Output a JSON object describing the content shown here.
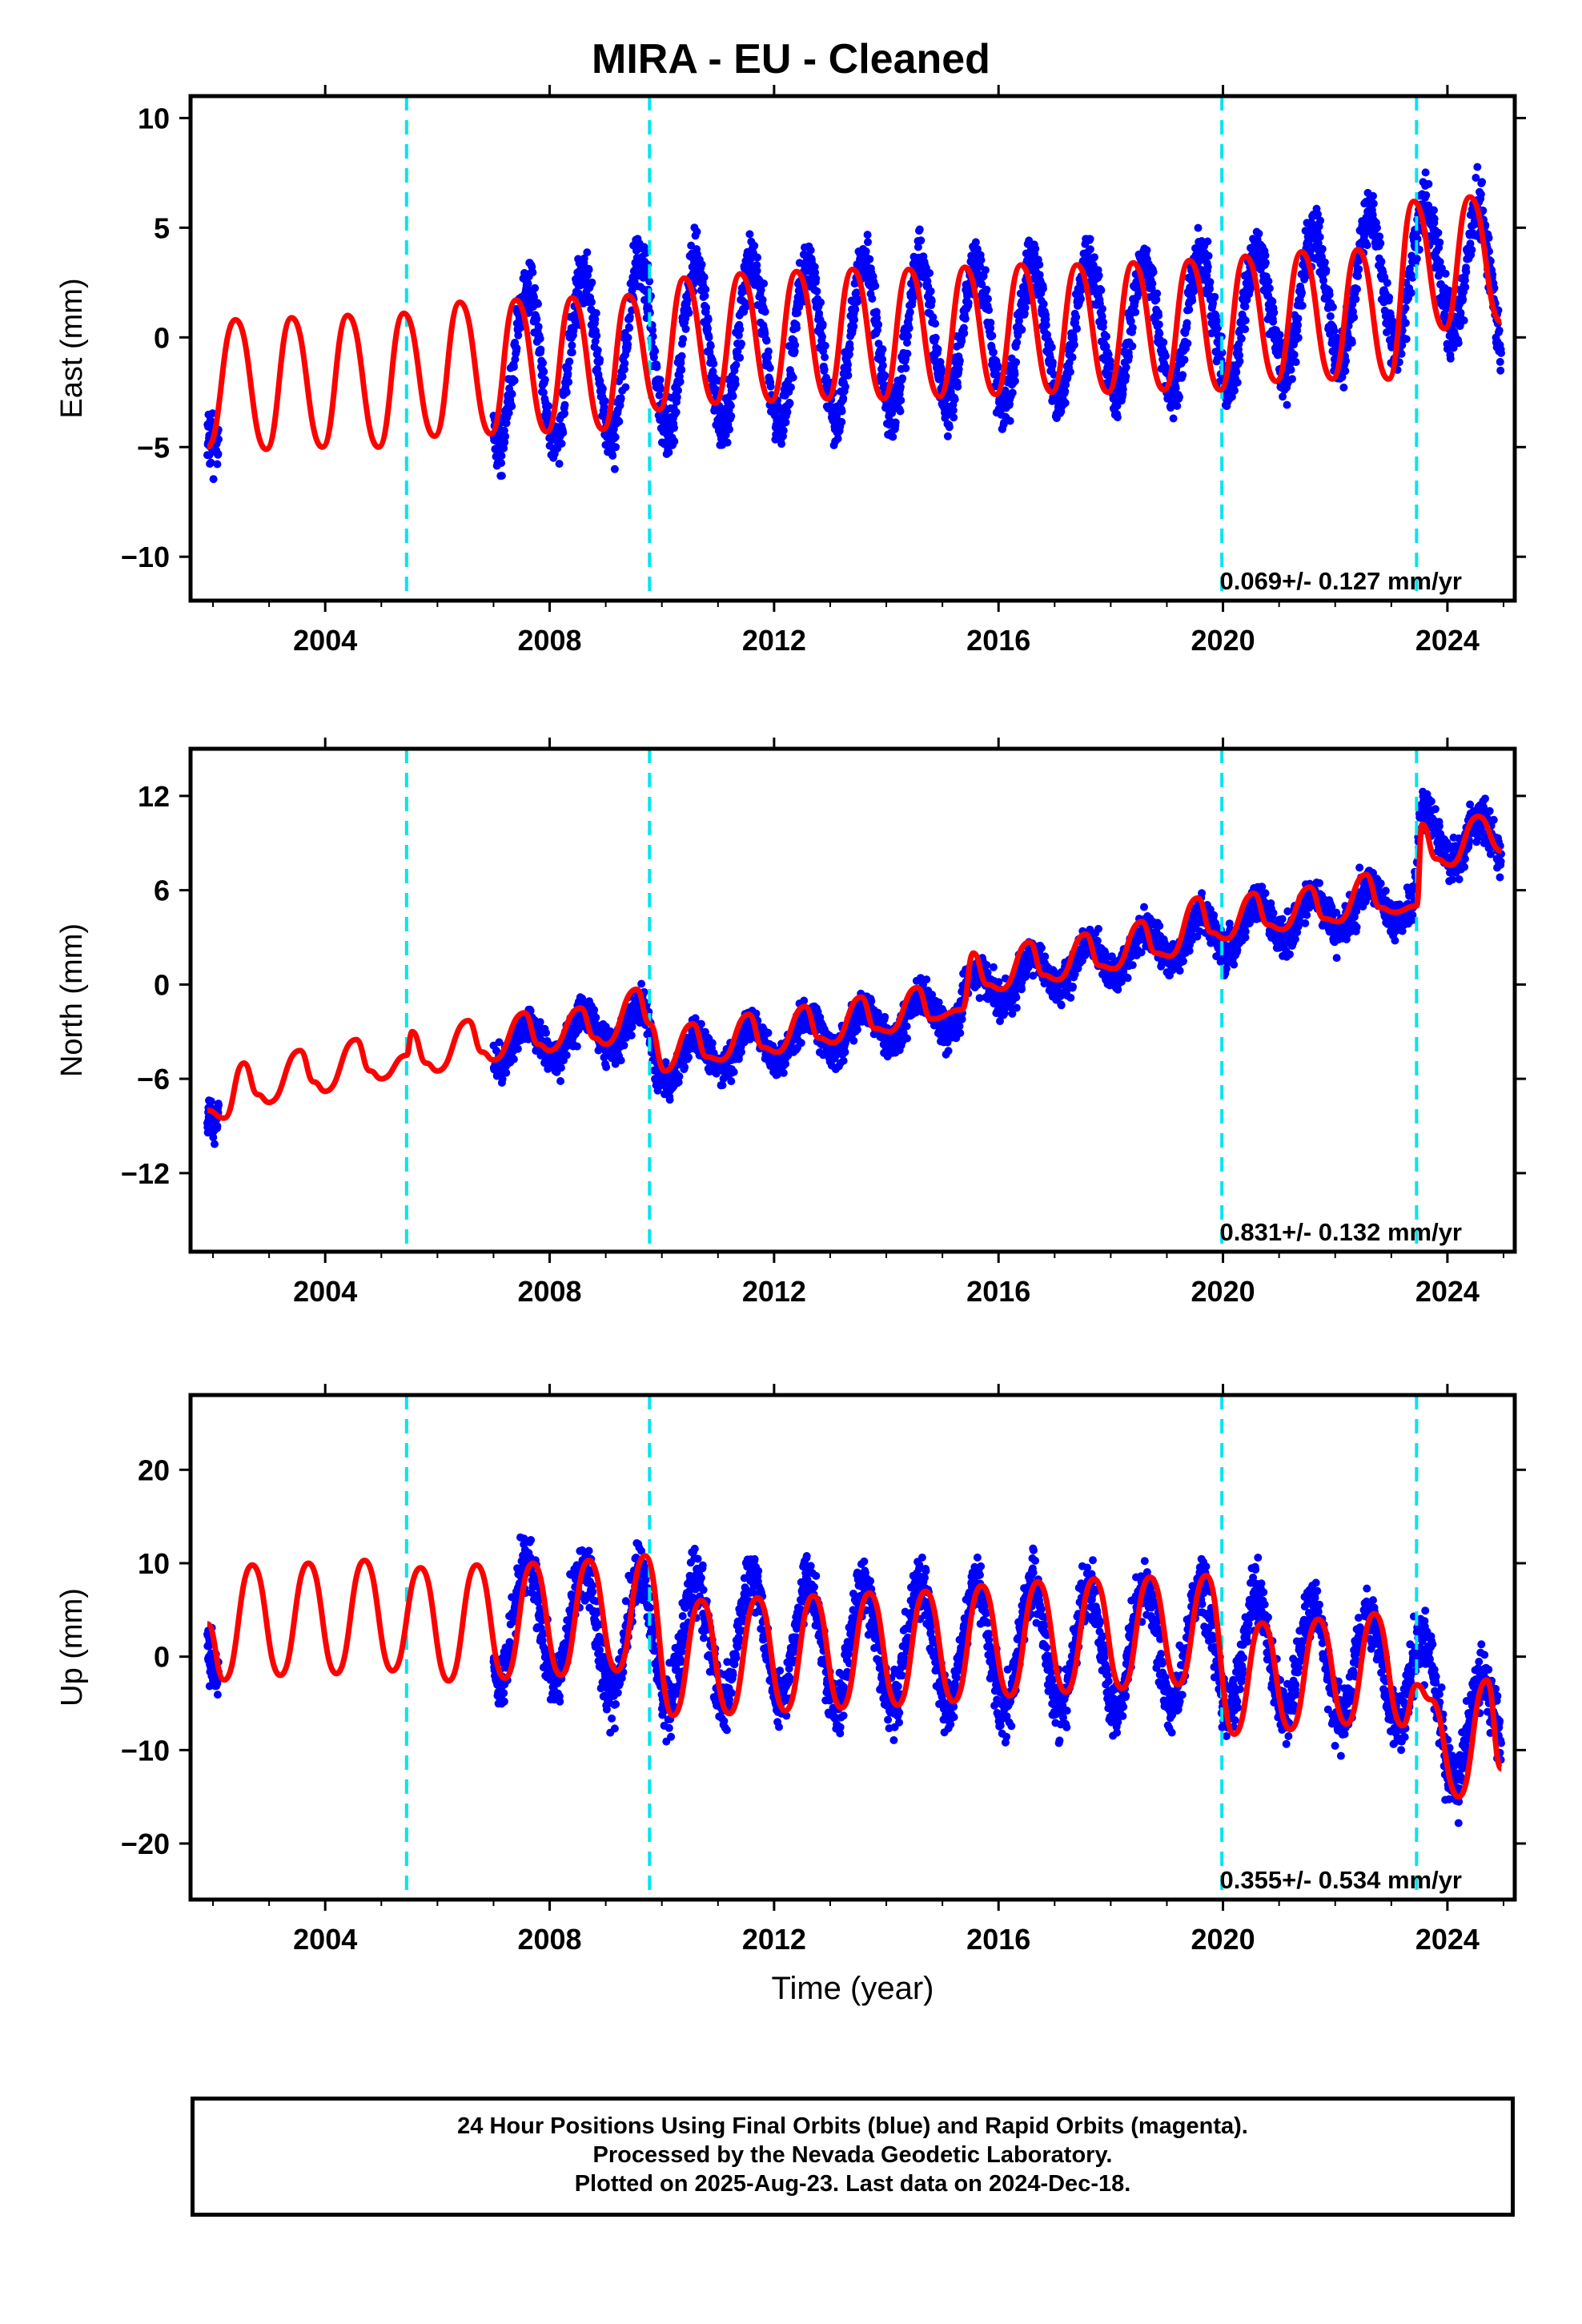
{
  "title": "MIRA  - EU - Cleaned",
  "colors": {
    "data_points": "#0000ff",
    "model_fit": "#ff0000",
    "event_lines": "#00e5ee",
    "axes": "#000000"
  },
  "x_axis": {
    "label": "Time (year)",
    "range": [
      2001.6,
      2025.2
    ],
    "ticks": [
      "2004",
      "2008",
      "2012",
      "2016",
      "2020",
      "2024"
    ]
  },
  "event_lines_years": [
    2005.45,
    2009.78,
    2019.98,
    2023.45
  ],
  "footer": {
    "line1": "24 Hour Positions Using Final Orbits (blue) and Rapid Orbits (magenta).",
    "line2": "Processed by the Nevada Geodetic Laboratory.",
    "line3": "Plotted on 2025-Aug-23. Last data on 2024-Dec-18."
  },
  "chart_data": [
    {
      "type": "scatter",
      "id": "east",
      "ylabel": "East (mm)",
      "ylim": [
        -12,
        11
      ],
      "yticks": [
        -10,
        -5,
        0,
        5,
        10
      ],
      "rate_text": "0.069+/- 0.127 mm/yr",
      "data_start": 2007.0,
      "data_end": 2024.96,
      "series": [
        {
          "kind": "points",
          "early_segment": [
            2001.9,
            2002.1
          ],
          "envelope": {
            "x": [
              2001.9,
              2002.1,
              2007.0,
              2009.8,
              2016.0,
              2019.9,
              2023.5,
              2024.5,
              2024.96
            ],
            "center": [
              -4.0,
              -3.0,
              -1.5,
              -0.5,
              0.2,
              0.6,
              3.0,
              3.5,
              0.5
            ],
            "amplitude": [
              1.5,
              1.5,
              3.5,
              4.0,
              3.2,
              3.0,
              3.0,
              3.0,
              2.0
            ],
            "noise": [
              1.6,
              1.6,
              1.6,
              1.6,
              1.5,
              1.5,
              1.7,
              1.7,
              1.5
            ]
          }
        },
        {
          "kind": "model",
          "x": [
            2001.9,
            2002.4,
            2002.95,
            2003.4,
            2003.95,
            2004.4,
            2004.95,
            2005.4,
            2005.95,
            2006.4,
            2006.95,
            2007.4,
            2007.95,
            2008.4,
            2008.95,
            2009.4,
            2009.95,
            2010.4,
            2010.95,
            2011.4,
            2011.95,
            2012.4,
            2012.95,
            2013.4,
            2013.95,
            2014.4,
            2014.95,
            2015.4,
            2015.95,
            2016.4,
            2016.95,
            2017.4,
            2017.95,
            2018.4,
            2018.95,
            2019.4,
            2019.95,
            2020.4,
            2020.95,
            2021.4,
            2021.95,
            2022.4,
            2022.95,
            2023.4,
            2023.95,
            2024.4,
            2024.96
          ],
          "y": [
            -5.0,
            0.8,
            -5.1,
            0.9,
            -5.0,
            1.0,
            -5.0,
            1.1,
            -4.5,
            1.6,
            -4.4,
            1.7,
            -4.3,
            1.8,
            -4.2,
            1.9,
            -3.3,
            2.7,
            -3.0,
            2.9,
            -2.9,
            3.0,
            -2.8,
            3.1,
            -2.8,
            3.1,
            -2.7,
            3.2,
            -2.6,
            3.3,
            -2.5,
            3.3,
            -2.5,
            3.4,
            -2.4,
            3.5,
            -2.4,
            3.7,
            -2.0,
            3.9,
            -1.9,
            4.0,
            -1.9,
            6.2,
            0.4,
            6.4,
            0.7
          ]
        }
      ]
    },
    {
      "type": "scatter",
      "id": "north",
      "ylabel": "North (mm)",
      "ylim": [
        -17,
        15
      ],
      "yticks": [
        -12,
        -6,
        0,
        6,
        12
      ],
      "rate_text": "0.831+/- 0.132 mm/yr",
      "data_start": 2007.0,
      "data_end": 2024.96,
      "series": [
        {
          "kind": "points",
          "early_segment": [
            2001.9,
            2002.1
          ],
          "envelope": {
            "x": [
              2001.9,
              2002.1,
              2007.0,
              2009.7,
              2009.9,
              2015.3,
              2015.4,
              2019.98,
              2023.45,
              2023.5,
              2024.96
            ],
            "center": [
              -8.0,
              -8.0,
              -4.0,
              -2.5,
              -5.0,
              -1.5,
              -0.5,
              3.5,
              5.5,
              9.5,
              9.0
            ],
            "amplitude": [
              0.8,
              0.8,
              1.3,
              1.3,
              1.3,
              1.2,
              1.2,
              1.3,
              1.3,
              1.5,
              1.5
            ],
            "noise": [
              1.5,
              1.5,
              1.5,
              1.5,
              1.5,
              1.4,
              1.4,
              1.5,
              1.6,
              1.7,
              1.7
            ]
          }
        },
        {
          "kind": "model",
          "x": [
            2001.9,
            2002.2,
            2002.55,
            2002.8,
            2003.0,
            2003.55,
            2003.8,
            2004.0,
            2004.55,
            2004.8,
            2005.0,
            2005.45,
            2005.55,
            2005.8,
            2006.0,
            2006.55,
            2006.8,
            2007.0,
            2007.55,
            2007.8,
            2008.0,
            2008.55,
            2008.8,
            2009.0,
            2009.55,
            2009.78,
            2010.05,
            2010.55,
            2010.8,
            2011.05,
            2011.55,
            2011.8,
            2012.05,
            2012.55,
            2012.8,
            2013.05,
            2013.55,
            2013.8,
            2014.05,
            2014.55,
            2014.8,
            2015.35,
            2015.55,
            2015.8,
            2016.05,
            2016.55,
            2016.8,
            2017.05,
            2017.55,
            2017.8,
            2018.05,
            2018.55,
            2018.8,
            2019.05,
            2019.55,
            2019.8,
            2020.05,
            2020.55,
            2020.8,
            2021.05,
            2021.55,
            2021.8,
            2022.05,
            2022.55,
            2022.8,
            2023.05,
            2023.45,
            2023.55,
            2023.8,
            2024.05,
            2024.55,
            2024.96
          ],
          "y": [
            -8.0,
            -8.5,
            -5.0,
            -7.0,
            -7.5,
            -4.2,
            -6.2,
            -6.8,
            -3.5,
            -5.5,
            -6.0,
            -4.5,
            -3.0,
            -5.0,
            -5.5,
            -2.3,
            -4.3,
            -4.8,
            -1.8,
            -3.8,
            -4.2,
            -1.5,
            -3.4,
            -3.8,
            -0.3,
            -2.5,
            -5.5,
            -2.5,
            -4.6,
            -4.8,
            -1.9,
            -4.0,
            -4.3,
            -1.4,
            -3.4,
            -3.7,
            -0.8,
            -2.8,
            -3.0,
            -0.2,
            -2.2,
            -1.6,
            2.0,
            0.0,
            -0.3,
            2.7,
            0.6,
            0.3,
            3.2,
            1.2,
            1.0,
            4.0,
            2.0,
            1.8,
            5.5,
            3.3,
            2.9,
            5.8,
            3.8,
            3.5,
            6.2,
            4.2,
            4.0,
            7.0,
            4.9,
            4.6,
            5.0,
            10.2,
            8.0,
            7.6,
            10.7,
            8.5
          ]
        }
      ]
    },
    {
      "type": "scatter",
      "id": "up",
      "ylabel": "Up (mm)",
      "ylim": [
        -26,
        28
      ],
      "yticks": [
        -20,
        -10,
        0,
        10,
        20
      ],
      "rate_text": "0.355+/- 0.534 mm/yr",
      "xlabel": "Time (year)",
      "data_start": 2007.0,
      "data_end": 2024.96,
      "series": [
        {
          "kind": "points",
          "early_segment": [
            2001.9,
            2002.1
          ],
          "envelope": {
            "x": [
              2001.9,
              2002.1,
              2007.0,
              2009.8,
              2015.0,
              2019.98,
              2023.45,
              2024.2,
              2024.96
            ],
            "center": [
              3.0,
              3.0,
              4.0,
              2.0,
              1.0,
              1.0,
              -2.0,
              -9.0,
              -6.0
            ],
            "amplitude": [
              5.0,
              5.0,
              6.5,
              6.5,
              6.5,
              6.5,
              5.5,
              5.5,
              5.0
            ],
            "noise": [
              3.5,
              3.5,
              4.2,
              4.2,
              4.0,
              4.0,
              4.2,
              4.2,
              4.0
            ]
          }
        },
        {
          "kind": "model",
          "x": [
            2001.9,
            2002.2,
            2002.7,
            2003.2,
            2003.7,
            2004.2,
            2004.7,
            2005.2,
            2005.7,
            2006.2,
            2006.7,
            2007.2,
            2007.7,
            2008.2,
            2008.7,
            2009.2,
            2009.7,
            2010.2,
            2010.7,
            2011.2,
            2011.7,
            2012.2,
            2012.7,
            2013.2,
            2013.7,
            2014.2,
            2014.7,
            2015.2,
            2015.7,
            2016.2,
            2016.7,
            2017.2,
            2017.7,
            2018.2,
            2018.7,
            2019.2,
            2019.7,
            2020.2,
            2020.7,
            2021.2,
            2021.7,
            2022.2,
            2022.7,
            2023.2,
            2023.45,
            2023.7,
            2024.2,
            2024.7,
            2024.96
          ],
          "y": [
            3.5,
            -2.5,
            9.8,
            -2.0,
            10.0,
            -1.8,
            10.3,
            -1.5,
            9.5,
            -2.6,
            9.8,
            -2.3,
            10.0,
            -2.0,
            10.3,
            -1.5,
            10.8,
            -6.3,
            6.0,
            -6.1,
            6.3,
            -5.8,
            6.5,
            -5.5,
            6.8,
            -5.2,
            7.0,
            -4.8,
            7.6,
            -4.2,
            8.0,
            -3.8,
            8.3,
            -3.4,
            8.5,
            -3.0,
            8.7,
            -8.3,
            3.6,
            -7.8,
            4.0,
            -7.2,
            4.6,
            -7.4,
            -3.0,
            -4.6,
            -15.0,
            -2.5,
            -12.0
          ]
        }
      ]
    }
  ]
}
